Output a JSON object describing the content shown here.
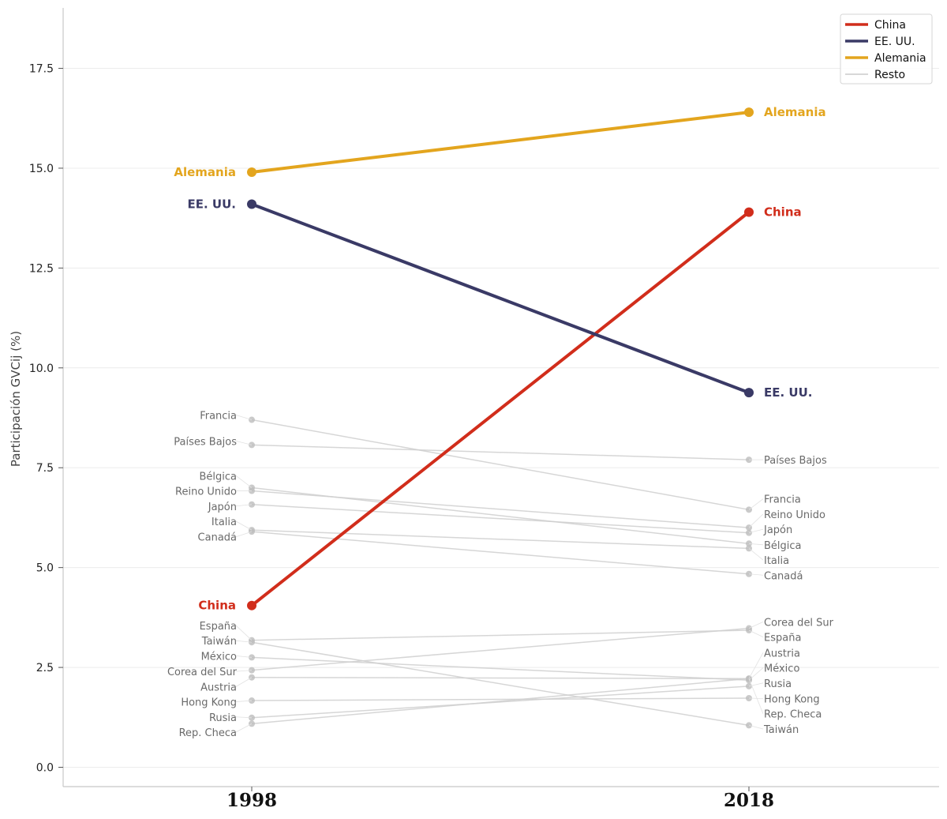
{
  "chart_data": {
    "type": "line",
    "title": "",
    "xlabel": "",
    "ylabel": "Participación GVCij (%)",
    "x": [
      "1998",
      "2018"
    ],
    "ylim": [
      -1.0,
      19.0
    ],
    "yticks": [
      0.0,
      2.5,
      5.0,
      7.5,
      10.0,
      12.5,
      15.0,
      17.5
    ],
    "ytick_labels": [
      "0.0",
      "2.5",
      "5.0",
      "7.5",
      "10.0",
      "12.5",
      "15.0",
      "17.5"
    ],
    "grid": "horizontal",
    "legend_position": "top-right",
    "highlight_series": [
      {
        "name": "China",
        "values": [
          4.05,
          13.9
        ],
        "color": "#d12d1b"
      },
      {
        "name": "EE. UU.",
        "values": [
          14.1,
          9.38
        ],
        "color": "#3a3a66"
      },
      {
        "name": "Alemania",
        "values": [
          14.9,
          16.4
        ],
        "color": "#e3a51e"
      }
    ],
    "rest_series": [
      {
        "name": "Francia",
        "values": [
          8.7,
          6.45
        ]
      },
      {
        "name": "Países Bajos",
        "values": [
          8.07,
          7.7
        ]
      },
      {
        "name": "Bélgica",
        "values": [
          7.0,
          5.6
        ]
      },
      {
        "name": "Reino Unido",
        "values": [
          6.92,
          6.0
        ]
      },
      {
        "name": "Japón",
        "values": [
          6.58,
          5.87
        ]
      },
      {
        "name": "Italia",
        "values": [
          5.94,
          5.48
        ]
      },
      {
        "name": "Canadá",
        "values": [
          5.9,
          4.84
        ]
      },
      {
        "name": "España",
        "values": [
          3.18,
          3.43
        ]
      },
      {
        "name": "Taiwán",
        "values": [
          3.13,
          1.05
        ]
      },
      {
        "name": "México",
        "values": [
          2.75,
          2.18
        ]
      },
      {
        "name": "Corea del Sur",
        "values": [
          2.43,
          3.48
        ]
      },
      {
        "name": "Austria",
        "values": [
          2.25,
          2.22
        ]
      },
      {
        "name": "Hong Kong",
        "values": [
          1.67,
          1.73
        ]
      },
      {
        "name": "Rusia",
        "values": [
          1.24,
          2.03
        ]
      },
      {
        "name": "Rep. Checa",
        "values": [
          1.09,
          2.22
        ]
      }
    ],
    "legend": [
      {
        "name": "China",
        "color": "#d12d1b"
      },
      {
        "name": "EE. UU.",
        "color": "#3a3a66"
      },
      {
        "name": "Alemania",
        "color": "#e3a51e"
      },
      {
        "name": "Resto",
        "color": "#cccccc"
      }
    ],
    "left_rest_labels": [
      {
        "name": "Francia",
        "label_y": 8.82
      },
      {
        "name": "Países Bajos",
        "label_y": 8.17
      },
      {
        "name": "Bélgica",
        "label_y": 7.3
      },
      {
        "name": "Reino Unido",
        "label_y": 6.92
      },
      {
        "name": "Japón",
        "label_y": 6.54
      },
      {
        "name": "Italia",
        "label_y": 6.16
      },
      {
        "name": "Canadá",
        "label_y": 5.77
      },
      {
        "name": "España",
        "label_y": 3.55
      },
      {
        "name": "Taiwán",
        "label_y": 3.17
      },
      {
        "name": "México",
        "label_y": 2.79
      },
      {
        "name": "Corea del Sur",
        "label_y": 2.4
      },
      {
        "name": "Austria",
        "label_y": 2.02
      },
      {
        "name": "Hong Kong",
        "label_y": 1.64
      },
      {
        "name": "Rusia",
        "label_y": 1.26
      },
      {
        "name": "Rep. Checa",
        "label_y": 0.88
      }
    ],
    "right_rest_labels": [
      {
        "name": "Países Bajos",
        "label_y": 7.7
      },
      {
        "name": "Francia",
        "label_y": 6.72
      },
      {
        "name": "Reino Unido",
        "label_y": 6.34
      },
      {
        "name": "Japón",
        "label_y": 5.96
      },
      {
        "name": "Bélgica",
        "label_y": 5.57
      },
      {
        "name": "Italia",
        "label_y": 5.19
      },
      {
        "name": "Canadá",
        "label_y": 4.81
      },
      {
        "name": "Corea del Sur",
        "label_y": 3.64
      },
      {
        "name": "España",
        "label_y": 3.26
      },
      {
        "name": "Austria",
        "label_y": 2.87
      },
      {
        "name": "México",
        "label_y": 2.49
      },
      {
        "name": "Rusia",
        "label_y": 2.11
      },
      {
        "name": "Hong Kong",
        "label_y": 1.72
      },
      {
        "name": "Rep. Checa",
        "label_y": 1.34
      },
      {
        "name": "Taiwán",
        "label_y": 0.96
      }
    ]
  }
}
